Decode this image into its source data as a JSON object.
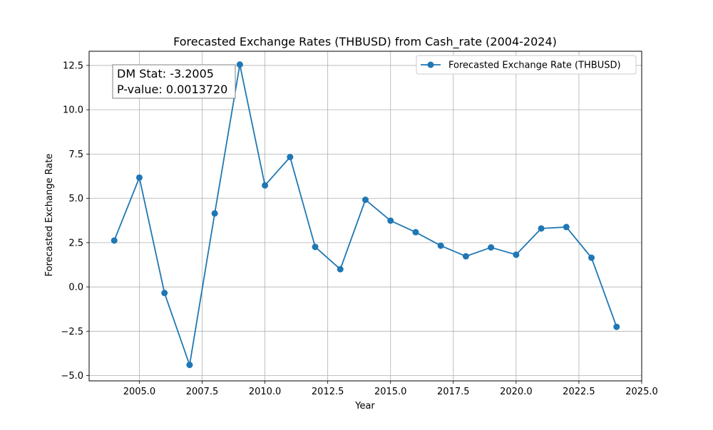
{
  "chart_data": {
    "type": "line",
    "title": "Forecasted Exchange Rates (THBUSD) from Cash_rate (2004-2024)",
    "xlabel": "Year",
    "ylabel": "Forecasted Exchange Rate",
    "xlim": [
      2003.0,
      2025.0
    ],
    "ylim": [
      -5.3,
      13.3
    ],
    "xticks": [
      2005.0,
      2007.5,
      2010.0,
      2012.5,
      2015.0,
      2017.5,
      2020.0,
      2022.5,
      2025.0
    ],
    "xtick_labels": [
      "2005.0",
      "2007.5",
      "2010.0",
      "2012.5",
      "2015.0",
      "2017.5",
      "2020.0",
      "2022.5",
      "2025.0"
    ],
    "yticks": [
      -5.0,
      -2.5,
      0.0,
      2.5,
      5.0,
      7.5,
      10.0,
      12.5
    ],
    "ytick_labels": [
      "−5.0",
      "−2.5",
      "0.0",
      "2.5",
      "5.0",
      "7.5",
      "10.0",
      "12.5"
    ],
    "grid": true,
    "legend_position": "top-right",
    "color": "#1f77b4",
    "series": [
      {
        "name": "Forecasted Exchange Rate (THBUSD)",
        "marker": "circle",
        "x": [
          2004,
          2005,
          2006,
          2007,
          2008,
          2009,
          2010,
          2011,
          2012,
          2013,
          2014,
          2015,
          2016,
          2017,
          2018,
          2019,
          2020,
          2021,
          2022,
          2023,
          2024
        ],
        "y": [
          2.62,
          6.17,
          -0.34,
          -4.4,
          4.15,
          12.55,
          5.73,
          7.33,
          2.26,
          1.0,
          4.92,
          3.74,
          3.09,
          2.33,
          1.73,
          2.23,
          1.82,
          3.3,
          3.38,
          1.65,
          -2.25
        ]
      }
    ],
    "annotation": {
      "line1": "DM Stat: -3.2005",
      "line2": "P-value: 0.0013720",
      "position": "top-left"
    }
  }
}
